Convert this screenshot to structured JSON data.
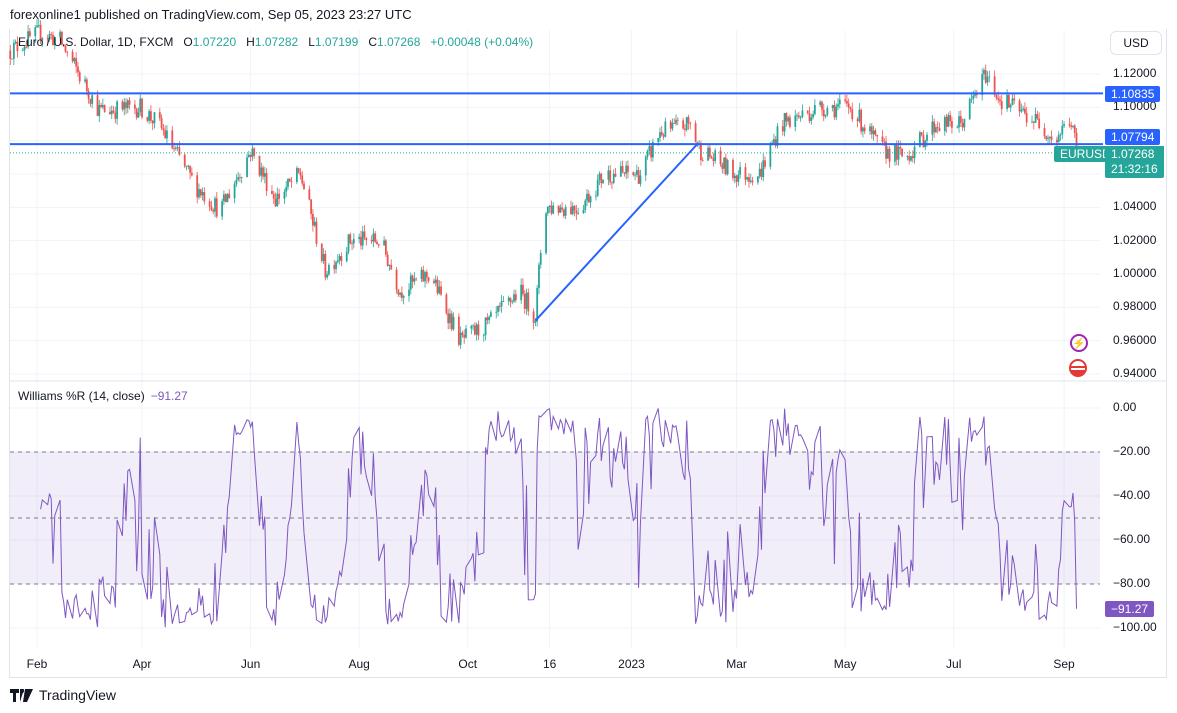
{
  "header": {
    "published": "forexonline1 published on TradingView.com, Sep 05, 2023 23:27 UTC"
  },
  "legend": {
    "symbol": "Euro / U.S. Dollar, 1D, FXCM",
    "o_label": "O",
    "o": "1.07220",
    "h_label": "H",
    "h": "1.07282",
    "l_label": "L",
    "l": "1.07199",
    "c_label": "C",
    "c": "1.07268",
    "change": "+0.00048 (+0.04%)"
  },
  "indicator": {
    "name": "Williams %R (14, close)",
    "value": "−91.27",
    "value_label": "−91.27"
  },
  "currency_button": "USD",
  "price_labels": {
    "line1": "1.10835",
    "line2": "1.07794",
    "symbol": "EURUSD",
    "last": "1.07268",
    "countdown": "21:32:16"
  },
  "brand": "TradingView",
  "colors": {
    "up": "#26a69a",
    "down": "#ef5350",
    "line": "#2962ff",
    "wr": "#7e57c2"
  },
  "chart_data": [
    {
      "type": "candlestick",
      "title": "Euro / U.S. Dollar, 1D, FXCM",
      "ylim": [
        0.93,
        1.14
      ],
      "yticks": [
        "1.12000",
        "1.10000",
        "1.04000",
        "1.02000",
        "1.00000",
        "0.98000",
        "0.96000",
        "0.94000"
      ],
      "ytick_values": [
        1.12,
        1.1,
        1.04,
        1.02,
        1.0,
        0.98,
        0.96,
        0.94
      ],
      "xticks": [
        "Feb",
        "Apr",
        "Jun",
        "Aug",
        "Oct",
        "16",
        "2023",
        "Mar",
        "May",
        "Jul",
        "Sep"
      ],
      "xtick_days": [
        0,
        59,
        120,
        181,
        242,
        288,
        334,
        393,
        454,
        515,
        577
      ],
      "path_note": "approximate close path [days since 2022-02-01, price]",
      "path": [
        [
          -15,
          1.134
        ],
        [
          2,
          1.145
        ],
        [
          13,
          1.14
        ],
        [
          35,
          1.098
        ],
        [
          58,
          1.1
        ],
        [
          69,
          1.089
        ],
        [
          89,
          1.053
        ],
        [
          103,
          1.038
        ],
        [
          120,
          1.074
        ],
        [
          134,
          1.045
        ],
        [
          148,
          1.06
        ],
        [
          162,
          1.002
        ],
        [
          176,
          1.02
        ],
        [
          193,
          1.02
        ],
        [
          204,
          0.99
        ],
        [
          221,
          1.0
        ],
        [
          238,
          0.96
        ],
        [
          254,
          0.97
        ],
        [
          271,
          0.99
        ],
        [
          280,
          0.975
        ],
        [
          285,
          1.04
        ],
        [
          305,
          1.04
        ],
        [
          319,
          1.06
        ],
        [
          339,
          1.06
        ],
        [
          350,
          1.085
        ],
        [
          367,
          1.09
        ],
        [
          372,
          1.075
        ],
        [
          392,
          1.06
        ],
        [
          406,
          1.06
        ],
        [
          418,
          1.09
        ],
        [
          440,
          1.1
        ],
        [
          457,
          1.1
        ],
        [
          474,
          1.075
        ],
        [
          488,
          1.07
        ],
        [
          505,
          1.09
        ],
        [
          519,
          1.09
        ],
        [
          533,
          1.12
        ],
        [
          541,
          1.105
        ],
        [
          564,
          1.09
        ],
        [
          572,
          1.08
        ],
        [
          580,
          1.093
        ],
        [
          585,
          1.0727
        ]
      ],
      "horizontal_lines": [
        1.10835,
        1.07794
      ],
      "trendline": [
        [
          280,
          0.972
        ],
        [
          371,
          1.078
        ]
      ],
      "last_price": 1.07268
    },
    {
      "type": "line",
      "title": "Williams %R (14, close)",
      "ylim": [
        -100,
        0
      ],
      "yticks": [
        "0.00",
        "−20.00",
        "−40.00",
        "−60.00",
        "−80.00",
        "−100.00"
      ],
      "ytick_values": [
        0,
        -20,
        -40,
        -60,
        -80,
        -100
      ],
      "bands": [
        -20,
        -50,
        -80
      ],
      "last_value": -91.27
    }
  ]
}
